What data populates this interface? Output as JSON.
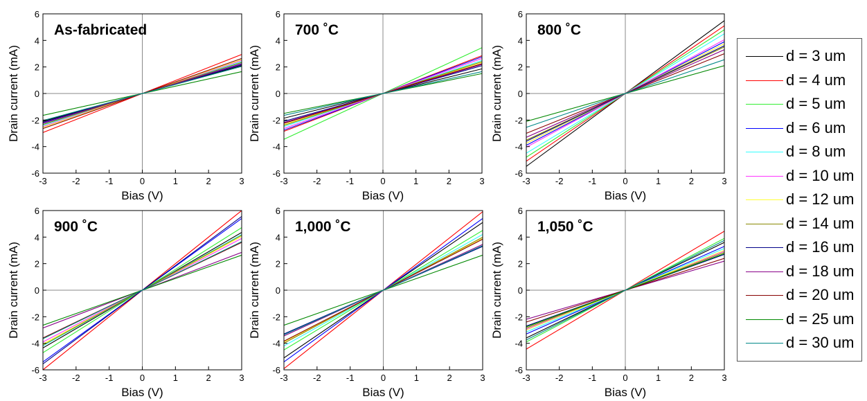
{
  "chart_data": {
    "type": "line",
    "legend": {
      "placement": "right",
      "entries": [
        {
          "label": "d = 3 um",
          "color": "#000000"
        },
        {
          "label": "d = 4 um",
          "color": "#ff0000"
        },
        {
          "label": "d = 5 um",
          "color": "#33ee33"
        },
        {
          "label": "d = 6 um",
          "color": "#0000ff"
        },
        {
          "label": "d = 8 um",
          "color": "#33ffff"
        },
        {
          "label": "d = 10 um",
          "color": "#ff33ff"
        },
        {
          "label": "d = 12 um",
          "color": "#ffff33"
        },
        {
          "label": "d = 14 um",
          "color": "#888800"
        },
        {
          "label": "d = 16 um",
          "color": "#000088"
        },
        {
          "label": "d = 18 um",
          "color": "#880088"
        },
        {
          "label": "d = 20 um",
          "color": "#880000"
        },
        {
          "label": "d = 25 um",
          "color": "#008800"
        },
        {
          "label": "d = 30 um",
          "color": "#008888"
        }
      ]
    },
    "panels": [
      {
        "title": "As-fabricated",
        "xlabel": "Bias (V)",
        "ylabel": "Drain current (mA)",
        "xlim": [
          -3,
          3
        ],
        "ylim": [
          -6,
          6
        ],
        "xticks": [
          -3,
          -2,
          -1,
          0,
          1,
          2,
          3
        ],
        "yticks": [
          -6,
          -4,
          -2,
          0,
          2,
          4,
          6
        ],
        "slopes": [
          0.7,
          0.98,
          0.78,
          0.75,
          0.8,
          0.83,
          0.85,
          0.78,
          0.72,
          0.74,
          0.88,
          0.55,
          0.68
        ]
      },
      {
        "title": "700 ˚C",
        "xlabel": "Bias (V)",
        "ylabel": "Drain current (mA)",
        "xlim": [
          -3,
          3
        ],
        "ylim": [
          -6,
          6
        ],
        "xticks": [
          -3,
          -2,
          -1,
          0,
          1,
          2,
          3
        ],
        "yticks": [
          -6,
          -4,
          -2,
          0,
          2,
          4,
          6
        ],
        "slopes": [
          0.62,
          0.95,
          1.15,
          0.92,
          0.83,
          0.88,
          0.78,
          0.8,
          0.7,
          0.73,
          0.75,
          0.5,
          0.55
        ]
      },
      {
        "title": "800 ˚C",
        "xlabel": "Bias (V)",
        "ylabel": "Drain current (mA)",
        "xlim": [
          -3,
          3
        ],
        "ylim": [
          -6,
          6
        ],
        "xticks": [
          -3,
          -2,
          -1,
          0,
          1,
          2,
          3
        ],
        "yticks": [
          -6,
          -4,
          -2,
          0,
          2,
          4,
          6
        ],
        "slopes": [
          1.83,
          1.7,
          1.6,
          1.3,
          1.5,
          1.35,
          1.25,
          1.17,
          1.2,
          1.1,
          1.0,
          0.7,
          0.85
        ]
      },
      {
        "title": "900 ˚C",
        "xlabel": "Bias (V)",
        "ylabel": "Drain current (mA)",
        "xlim": [
          -3,
          3
        ],
        "ylim": [
          -6,
          6
        ],
        "xticks": [
          -3,
          -2,
          -1,
          0,
          1,
          2,
          3
        ],
        "yticks": [
          -6,
          -4,
          -2,
          0,
          2,
          4,
          6
        ],
        "slopes": [
          1.45,
          2.0,
          1.57,
          1.8,
          1.4,
          1.3,
          1.35,
          1.38,
          1.85,
          0.95,
          1.2,
          0.88,
          1.22
        ]
      },
      {
        "title": "1,000 ˚C",
        "xlabel": "Bias (V)",
        "ylabel": "Drain current (mA)",
        "xlim": [
          -3,
          3
        ],
        "ylim": [
          -6,
          6
        ],
        "xticks": [
          -3,
          -2,
          -1,
          0,
          1,
          2,
          3
        ],
        "yticks": [
          -6,
          -4,
          -2,
          0,
          2,
          4,
          6
        ],
        "slopes": [
          1.7,
          1.97,
          1.5,
          1.8,
          1.4,
          1.3,
          1.3,
          1.33,
          1.1,
          1.15,
          1.28,
          0.88,
          1.12
        ]
      },
      {
        "title": "1,050 ˚C",
        "xlabel": "Bias (V)",
        "ylabel": "Drain current (mA)",
        "xlim": [
          -3,
          3
        ],
        "ylim": [
          -6,
          6
        ],
        "xticks": [
          -3,
          -2,
          -1,
          0,
          1,
          2,
          3
        ],
        "yticks": [
          -6,
          -4,
          -2,
          0,
          2,
          4,
          6
        ],
        "slopes": [
          1.2,
          1.48,
          1.3,
          1.1,
          1.05,
          0.98,
          1.0,
          0.95,
          0.9,
          0.73,
          0.8,
          0.92,
          1.25
        ]
      }
    ]
  }
}
